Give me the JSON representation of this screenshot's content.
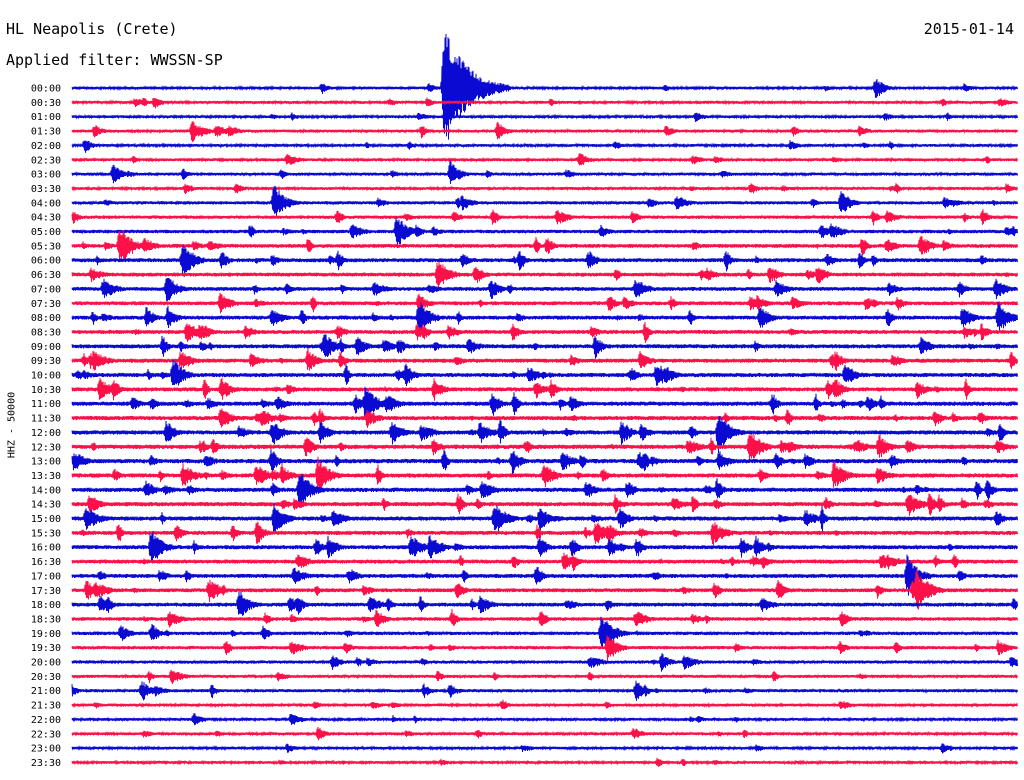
{
  "header": {
    "station": "HL Neapolis (Crete)",
    "filter": "Applied filter: WWSSN-SP",
    "date": "2015-01-14"
  },
  "chart_data": {
    "type": "line",
    "title": "HL Neapolis (Crete)",
    "subtitle": "Applied filter: WWSSN-SP",
    "ylabel": "HHZ - 50000",
    "xlabel": "",
    "colors": {
      "even_row": "#0a0ad2",
      "odd_row": "#ff1049"
    },
    "row_labels": [
      "00:00",
      "00:30",
      "01:00",
      "01:30",
      "02:00",
      "02:30",
      "03:00",
      "03:30",
      "04:00",
      "04:30",
      "05:00",
      "05:30",
      "06:00",
      "06:30",
      "07:00",
      "07:30",
      "08:00",
      "08:30",
      "09:00",
      "09:30",
      "10:00",
      "10:30",
      "11:00",
      "11:30",
      "12:00",
      "12:30",
      "13:00",
      "13:30",
      "14:00",
      "14:30",
      "15:00",
      "15:30",
      "16:00",
      "16:30",
      "17:00",
      "17:30",
      "18:00",
      "18:30",
      "19:00",
      "19:30",
      "20:00",
      "20:30",
      "21:00",
      "21:30",
      "22:00",
      "22:30",
      "23:00",
      "23:30"
    ],
    "row_activity": [
      0.25,
      0.3,
      0.25,
      0.35,
      0.25,
      0.3,
      0.35,
      0.3,
      0.45,
      0.5,
      0.55,
      0.7,
      0.75,
      0.7,
      0.7,
      0.7,
      0.75,
      0.75,
      0.8,
      0.8,
      0.8,
      0.8,
      0.85,
      0.85,
      0.85,
      0.9,
      0.9,
      0.85,
      0.85,
      0.85,
      0.85,
      0.8,
      0.8,
      0.75,
      0.75,
      0.75,
      0.7,
      0.6,
      0.55,
      0.5,
      0.45,
      0.4,
      0.4,
      0.3,
      0.3,
      0.3,
      0.25,
      0.25
    ],
    "events": [
      {
        "row": 0,
        "minute": 11.8,
        "amplitude": 65
      },
      {
        "row": 0,
        "minute": 25.5,
        "amplitude": 12
      },
      {
        "row": 1,
        "minute": 2.6,
        "amplitude": 7
      },
      {
        "row": 3,
        "minute": 3.8,
        "amplitude": 12
      },
      {
        "row": 3,
        "minute": 13.5,
        "amplitude": 10
      },
      {
        "row": 4,
        "minute": 0.4,
        "amplitude": 8
      },
      {
        "row": 5,
        "minute": 16.1,
        "amplitude": 9
      },
      {
        "row": 6,
        "minute": 1.3,
        "amplitude": 12
      },
      {
        "row": 6,
        "minute": 12.0,
        "amplitude": 14
      },
      {
        "row": 7,
        "minute": 5.2,
        "amplitude": 7
      },
      {
        "row": 8,
        "minute": 6.4,
        "amplitude": 20
      },
      {
        "row": 8,
        "minute": 24.4,
        "amplitude": 14
      },
      {
        "row": 10,
        "minute": 10.3,
        "amplitude": 18
      },
      {
        "row": 11,
        "minute": 1.5,
        "amplitude": 22
      },
      {
        "row": 12,
        "minute": 3.5,
        "amplitude": 20
      },
      {
        "row": 13,
        "minute": 11.6,
        "amplitude": 18
      },
      {
        "row": 14,
        "minute": 3.0,
        "amplitude": 16
      },
      {
        "row": 16,
        "minute": 11.0,
        "amplitude": 20
      },
      {
        "row": 16,
        "minute": 29.4,
        "amplitude": 18
      },
      {
        "row": 18,
        "minute": 8.0,
        "amplitude": 16
      },
      {
        "row": 20,
        "minute": 3.2,
        "amplitude": 18
      },
      {
        "row": 22,
        "minute": 9.3,
        "amplitude": 20
      },
      {
        "row": 24,
        "minute": 20.5,
        "amplitude": 22
      },
      {
        "row": 25,
        "minute": 21.5,
        "amplitude": 20
      },
      {
        "row": 27,
        "minute": 7.8,
        "amplitude": 20
      },
      {
        "row": 28,
        "minute": 7.2,
        "amplitude": 22
      },
      {
        "row": 30,
        "minute": 6.4,
        "amplitude": 18
      },
      {
        "row": 32,
        "minute": 2.5,
        "amplitude": 20
      },
      {
        "row": 34,
        "minute": 26.5,
        "amplitude": 22
      },
      {
        "row": 35,
        "minute": 26.8,
        "amplitude": 24
      },
      {
        "row": 36,
        "minute": 5.3,
        "amplitude": 16
      },
      {
        "row": 38,
        "minute": 16.8,
        "amplitude": 22
      },
      {
        "row": 39,
        "minute": 17.0,
        "amplitude": 16
      },
      {
        "row": 40,
        "minute": 18.7,
        "amplitude": 10
      },
      {
        "row": 42,
        "minute": 2.2,
        "amplitude": 12
      },
      {
        "row": 42,
        "minute": 17.9,
        "amplitude": 12
      },
      {
        "row": 45,
        "minute": 7.8,
        "amplitude": 8
      }
    ],
    "x_range_minutes": [
      0,
      30
    ]
  }
}
